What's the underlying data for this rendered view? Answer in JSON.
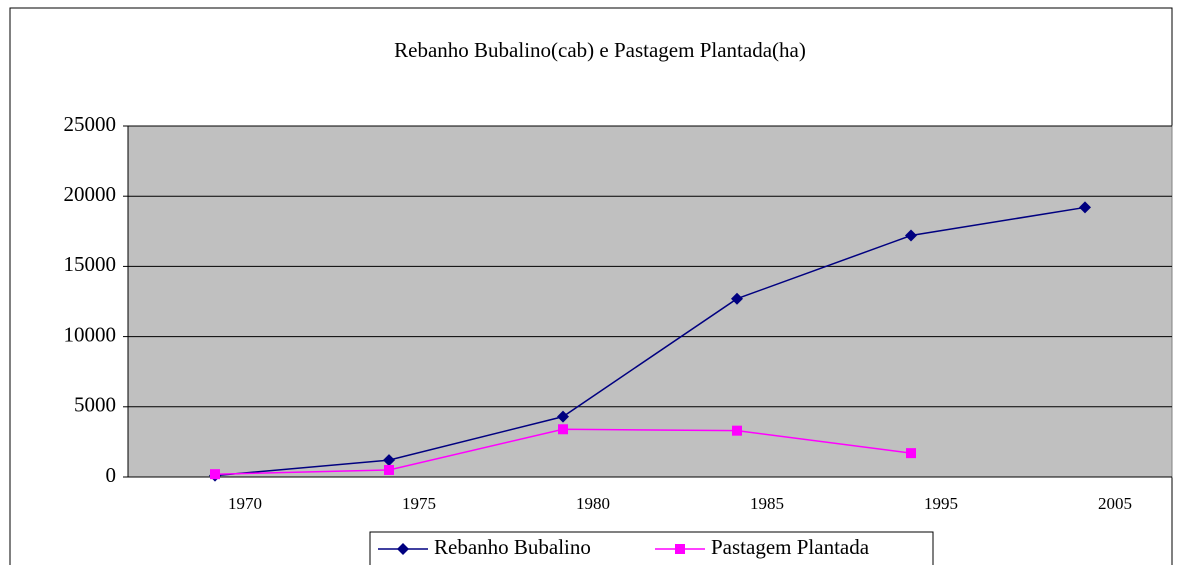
{
  "chart_data": {
    "type": "line",
    "title": "Rebanho Bubalino(cab) e Pastagem Plantada(ha)",
    "categories": [
      "1970",
      "1975",
      "1980",
      "1985",
      "1995",
      "2005"
    ],
    "series": [
      {
        "name": "Rebanho Bubalino",
        "color": "#000080",
        "marker": "diamond",
        "values": [
          100,
          1200,
          4300,
          12700,
          17200,
          19200
        ]
      },
      {
        "name": "Pastagem Plantada",
        "color": "#ff00ff",
        "marker": "square",
        "values": [
          200,
          500,
          3400,
          3300,
          1700,
          null
        ]
      }
    ],
    "ylim": [
      0,
      25000
    ],
    "yticks": [
      0,
      5000,
      10000,
      15000,
      20000,
      25000
    ],
    "grid": true,
    "legend": "bottom"
  }
}
